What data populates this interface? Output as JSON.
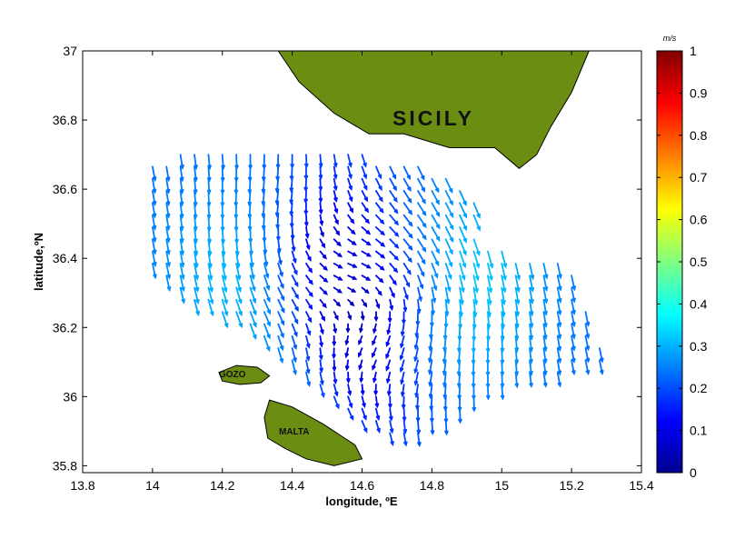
{
  "map": {
    "xlabel": "longitude, ºE",
    "ylabel": "latitude,ºN",
    "xlim": [
      13.8,
      15.4
    ],
    "ylim": [
      35.78,
      37.0
    ],
    "xticks": [
      {
        "v": 13.8,
        "t": "13.8"
      },
      {
        "v": 14.0,
        "t": "14"
      },
      {
        "v": 14.2,
        "t": "14.2"
      },
      {
        "v": 14.4,
        "t": "14.4"
      },
      {
        "v": 14.6,
        "t": "14.6"
      },
      {
        "v": 14.8,
        "t": "14.8"
      },
      {
        "v": 15.0,
        "t": "15"
      },
      {
        "v": 15.2,
        "t": "15.2"
      },
      {
        "v": 15.4,
        "t": "15.4"
      }
    ],
    "yticks": [
      {
        "v": 35.8,
        "t": "35.8"
      },
      {
        "v": 36.0,
        "t": "36"
      },
      {
        "v": 36.2,
        "t": "36.2"
      },
      {
        "v": 36.4,
        "t": "36.4"
      },
      {
        "v": 36.6,
        "t": "36.6"
      },
      {
        "v": 36.8,
        "t": "36.8"
      },
      {
        "v": 37.0,
        "t": "37"
      }
    ],
    "land_color": "#6b8e12",
    "land_labels": {
      "sicily": "SICILY",
      "gozo": "GOZO",
      "malta": "MALTA"
    }
  },
  "colorbar": {
    "unit": "m/s",
    "range": [
      0,
      1
    ],
    "ticks": [
      {
        "v": 0.0,
        "t": "0"
      },
      {
        "v": 0.1,
        "t": "0.1"
      },
      {
        "v": 0.2,
        "t": "0.2"
      },
      {
        "v": 0.3,
        "t": "0.3"
      },
      {
        "v": 0.4,
        "t": "0.4"
      },
      {
        "v": 0.5,
        "t": "0.5"
      },
      {
        "v": 0.6,
        "t": "0.6"
      },
      {
        "v": 0.7,
        "t": "0.7"
      },
      {
        "v": 0.8,
        "t": "0.8"
      },
      {
        "v": 0.9,
        "t": "0.9"
      },
      {
        "v": 1.0,
        "t": "1"
      }
    ],
    "colormap": "jet"
  },
  "sicily_coast": [
    [
      14.36,
      37.0
    ],
    [
      14.42,
      36.91
    ],
    [
      14.52,
      36.82
    ],
    [
      14.62,
      36.76
    ],
    [
      14.72,
      36.76
    ],
    [
      14.85,
      36.72
    ],
    [
      14.98,
      36.72
    ],
    [
      15.05,
      36.66
    ],
    [
      15.1,
      36.7
    ],
    [
      15.14,
      36.78
    ],
    [
      15.2,
      36.88
    ],
    [
      15.25,
      37.0
    ]
  ],
  "gozo": [
    [
      14.19,
      36.07
    ],
    [
      14.24,
      36.09
    ],
    [
      14.3,
      36.085
    ],
    [
      14.335,
      36.06
    ],
    [
      14.31,
      36.04
    ],
    [
      14.25,
      36.035
    ],
    [
      14.2,
      36.045
    ]
  ],
  "malta": [
    [
      14.335,
      35.99
    ],
    [
      14.4,
      35.97
    ],
    [
      14.49,
      35.92
    ],
    [
      14.58,
      35.86
    ],
    [
      14.6,
      35.82
    ],
    [
      14.52,
      35.8
    ],
    [
      14.44,
      35.82
    ],
    [
      14.38,
      35.85
    ],
    [
      14.33,
      35.88
    ],
    [
      14.32,
      35.94
    ]
  ],
  "current_field": {
    "domain": [
      [
        13.96,
        36.68
      ],
      [
        14.2,
        36.72
      ],
      [
        14.4,
        36.72
      ],
      [
        14.6,
        36.7
      ],
      [
        14.82,
        36.66
      ],
      [
        14.95,
        36.56
      ],
      [
        14.9,
        36.48
      ],
      [
        15.02,
        36.42
      ],
      [
        15.2,
        36.38
      ],
      [
        15.3,
        36.1
      ],
      [
        14.95,
        36.02
      ],
      [
        14.78,
        35.88
      ],
      [
        14.62,
        35.9
      ],
      [
        14.5,
        36.0
      ],
      [
        14.4,
        36.1
      ],
      [
        14.28,
        36.2
      ],
      [
        14.1,
        36.28
      ],
      [
        13.98,
        36.4
      ]
    ],
    "eddies": [
      {
        "lon": 14.4,
        "lat": 36.4,
        "radius": 0.2,
        "sense": 1,
        "strength": 0.28
      },
      {
        "lon": 14.72,
        "lat": 36.32,
        "radius": 0.22,
        "sense": -1,
        "strength": 0.3
      },
      {
        "lon": 14.5,
        "lat": 36.05,
        "radius": 0.15,
        "sense": 1,
        "strength": 0.2
      }
    ],
    "background_flow": [
      0.05,
      -0.22
    ],
    "max_speed": 0.46
  }
}
